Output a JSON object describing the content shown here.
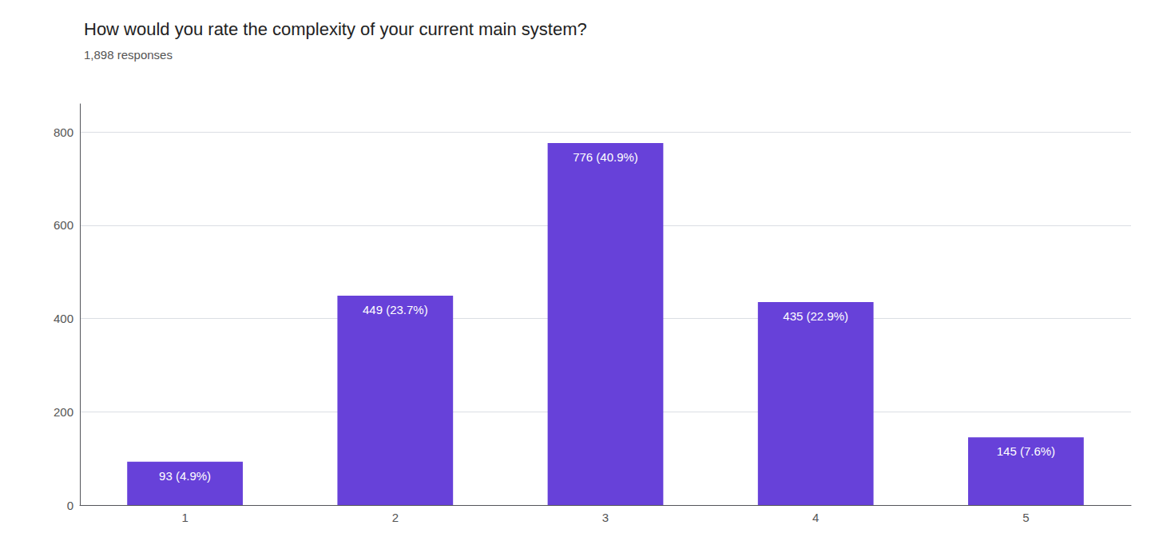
{
  "chart_data": {
    "type": "bar",
    "title": "How would you rate the complexity of your current main system?",
    "subtitle": "1,898 responses",
    "categories": [
      "1",
      "2",
      "3",
      "4",
      "5"
    ],
    "values": [
      93,
      449,
      776,
      435,
      145
    ],
    "value_labels": [
      "93 (4.9%)",
      "449 (23.7%)",
      "776 (40.9%)",
      "435 (22.9%)",
      "145 (7.6%)"
    ],
    "data_labels": true,
    "color": "#6741d9",
    "ylim": [
      0,
      860
    ],
    "yticks": [
      0,
      200,
      400,
      600,
      800
    ],
    "grid": true
  }
}
